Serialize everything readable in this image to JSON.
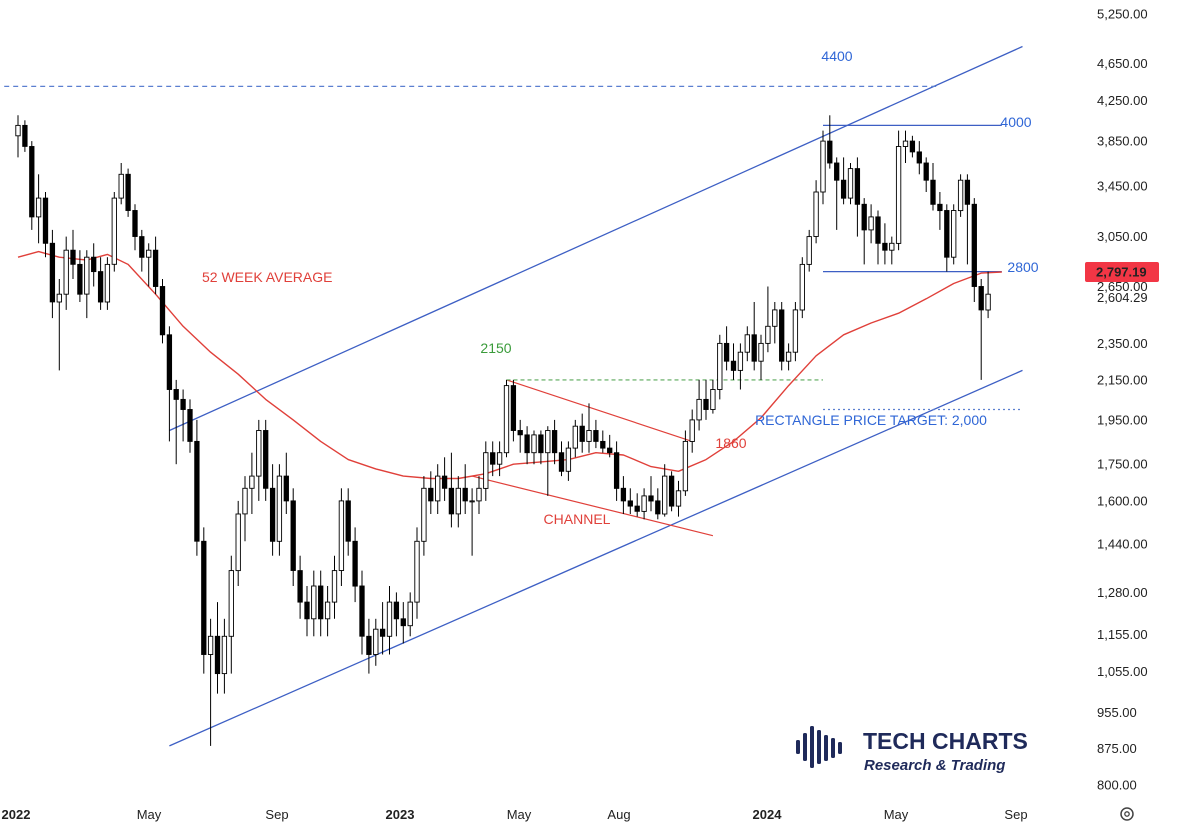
{
  "chart_data": {
    "type": "candlestick",
    "title": "",
    "y_axis": {
      "scale": "log",
      "ticks": [
        "5,250.00",
        "4,650.00",
        "4,250.00",
        "3,850.00",
        "3,450.00",
        "3,050.00",
        "2,650.00",
        "2,604.29",
        "2,350.00",
        "2,150.00",
        "1,950.00",
        "1,750.00",
        "1,600.00",
        "1,440.00",
        "1,280.00",
        "1,155.00",
        "1,055.00",
        "955.00",
        "875.00",
        "800.00"
      ],
      "tick_values": [
        5250,
        4650,
        4250,
        3850,
        3450,
        3050,
        2650,
        2604.29,
        2350,
        2150,
        1950,
        1750,
        1600,
        1440,
        1280,
        1155,
        1055,
        955,
        875,
        800
      ],
      "current_price_label": "2,797.19",
      "current_price": 2797.19,
      "current_price_color": "#f23645"
    },
    "x_axis": {
      "ticks": [
        "2022",
        "May",
        "Sep",
        "2023",
        "May",
        "Aug",
        "2024",
        "May",
        "Sep"
      ],
      "bold_ticks": [
        "2022",
        "2023",
        "2024"
      ]
    },
    "annotations": {
      "level_4400": "4400",
      "level_4000": "4000",
      "level_2800": "2800",
      "level_2150": "2150",
      "level_1860": "1860",
      "ma_label": "52 WEEK AVERAGE",
      "channel_label": "CHANNEL",
      "target_label": "RECTANGLE PRICE TARGET: 2,000"
    },
    "annotation_levels": {
      "level_4400": 4400,
      "level_4000": 4000,
      "level_2800": 2800,
      "level_2150": 2150,
      "target": 2000
    },
    "colors": {
      "trendline": "#3d5fc4",
      "moving_average": "#e0403a",
      "level_2150_label": "#3a9b3a",
      "level_2150_line": "#5aa85a",
      "blue_label": "#2f66d6",
      "red_label": "#e0403a",
      "dotted_level": "#5b7fd0",
      "candle_up_fill": "#ffffff",
      "candle_down_fill": "#000000",
      "candle_outline": "#000000"
    },
    "candles": [
      {
        "o": 3900,
        "h": 4100,
        "l": 3700,
        "c": 4000
      },
      {
        "o": 4000,
        "h": 4050,
        "l": 3750,
        "c": 3800
      },
      {
        "o": 3800,
        "h": 3850,
        "l": 3100,
        "c": 3200
      },
      {
        "o": 3200,
        "h": 3550,
        "l": 3000,
        "c": 3350
      },
      {
        "o": 3350,
        "h": 3400,
        "l": 2900,
        "c": 3000
      },
      {
        "o": 3000,
        "h": 3100,
        "l": 2500,
        "c": 2600
      },
      {
        "o": 2600,
        "h": 2750,
        "l": 2200,
        "c": 2650
      },
      {
        "o": 2650,
        "h": 3050,
        "l": 2550,
        "c": 2950
      },
      {
        "o": 2950,
        "h": 3100,
        "l": 2750,
        "c": 2850
      },
      {
        "o": 2850,
        "h": 2950,
        "l": 2600,
        "c": 2650
      },
      {
        "o": 2650,
        "h": 2950,
        "l": 2500,
        "c": 2900
      },
      {
        "o": 2900,
        "h": 3000,
        "l": 2700,
        "c": 2800
      },
      {
        "o": 2800,
        "h": 2900,
        "l": 2550,
        "c": 2600
      },
      {
        "o": 2600,
        "h": 2900,
        "l": 2550,
        "c": 2850
      },
      {
        "o": 2850,
        "h": 3400,
        "l": 2800,
        "c": 3350
      },
      {
        "o": 3350,
        "h": 3650,
        "l": 3300,
        "c": 3550
      },
      {
        "o": 3550,
        "h": 3600,
        "l": 3200,
        "c": 3250
      },
      {
        "o": 3250,
        "h": 3300,
        "l": 2950,
        "c": 3050
      },
      {
        "o": 3050,
        "h": 3100,
        "l": 2800,
        "c": 2900
      },
      {
        "o": 2900,
        "h": 3000,
        "l": 2700,
        "c": 2950
      },
      {
        "o": 2950,
        "h": 3050,
        "l": 2650,
        "c": 2700
      },
      {
        "o": 2700,
        "h": 2750,
        "l": 2350,
        "c": 2400
      },
      {
        "o": 2400,
        "h": 2450,
        "l": 1850,
        "c": 2100
      },
      {
        "o": 2100,
        "h": 2150,
        "l": 1750,
        "c": 2050
      },
      {
        "o": 2050,
        "h": 2100,
        "l": 1850,
        "c": 2000
      },
      {
        "o": 2000,
        "h": 2050,
        "l": 1800,
        "c": 1850
      },
      {
        "o": 1850,
        "h": 1950,
        "l": 1400,
        "c": 1450
      },
      {
        "o": 1450,
        "h": 1500,
        "l": 1050,
        "c": 1100
      },
      {
        "o": 1100,
        "h": 1200,
        "l": 880,
        "c": 1150
      },
      {
        "o": 1150,
        "h": 1250,
        "l": 1000,
        "c": 1050
      },
      {
        "o": 1050,
        "h": 1200,
        "l": 1000,
        "c": 1150
      },
      {
        "o": 1150,
        "h": 1400,
        "l": 1050,
        "c": 1350
      },
      {
        "o": 1350,
        "h": 1600,
        "l": 1300,
        "c": 1550
      },
      {
        "o": 1550,
        "h": 1700,
        "l": 1450,
        "c": 1650
      },
      {
        "o": 1650,
        "h": 1800,
        "l": 1550,
        "c": 1700
      },
      {
        "o": 1700,
        "h": 1950,
        "l": 1600,
        "c": 1900
      },
      {
        "o": 1900,
        "h": 1950,
        "l": 1600,
        "c": 1650
      },
      {
        "o": 1650,
        "h": 1750,
        "l": 1400,
        "c": 1450
      },
      {
        "o": 1450,
        "h": 1750,
        "l": 1400,
        "c": 1700
      },
      {
        "o": 1700,
        "h": 1800,
        "l": 1550,
        "c": 1600
      },
      {
        "o": 1600,
        "h": 1650,
        "l": 1300,
        "c": 1350
      },
      {
        "o": 1350,
        "h": 1400,
        "l": 1200,
        "c": 1250
      },
      {
        "o": 1250,
        "h": 1300,
        "l": 1150,
        "c": 1200
      },
      {
        "o": 1200,
        "h": 1350,
        "l": 1150,
        "c": 1300
      },
      {
        "o": 1300,
        "h": 1350,
        "l": 1150,
        "c": 1200
      },
      {
        "o": 1200,
        "h": 1300,
        "l": 1150,
        "c": 1250
      },
      {
        "o": 1250,
        "h": 1400,
        "l": 1200,
        "c": 1350
      },
      {
        "o": 1350,
        "h": 1650,
        "l": 1300,
        "c": 1600
      },
      {
        "o": 1600,
        "h": 1650,
        "l": 1400,
        "c": 1450
      },
      {
        "o": 1450,
        "h": 1500,
        "l": 1250,
        "c": 1300
      },
      {
        "o": 1300,
        "h": 1350,
        "l": 1100,
        "c": 1150
      },
      {
        "o": 1150,
        "h": 1200,
        "l": 1050,
        "c": 1100
      },
      {
        "o": 1100,
        "h": 1200,
        "l": 1070,
        "c": 1170
      },
      {
        "o": 1170,
        "h": 1250,
        "l": 1100,
        "c": 1150
      },
      {
        "o": 1150,
        "h": 1300,
        "l": 1100,
        "c": 1250
      },
      {
        "o": 1250,
        "h": 1280,
        "l": 1150,
        "c": 1200
      },
      {
        "o": 1200,
        "h": 1250,
        "l": 1130,
        "c": 1180
      },
      {
        "o": 1180,
        "h": 1280,
        "l": 1150,
        "c": 1250
      },
      {
        "o": 1250,
        "h": 1500,
        "l": 1200,
        "c": 1450
      },
      {
        "o": 1450,
        "h": 1700,
        "l": 1400,
        "c": 1650
      },
      {
        "o": 1650,
        "h": 1720,
        "l": 1550,
        "c": 1600
      },
      {
        "o": 1600,
        "h": 1750,
        "l": 1550,
        "c": 1700
      },
      {
        "o": 1700,
        "h": 1780,
        "l": 1600,
        "c": 1650
      },
      {
        "o": 1650,
        "h": 1800,
        "l": 1500,
        "c": 1550
      },
      {
        "o": 1550,
        "h": 1700,
        "l": 1500,
        "c": 1650
      },
      {
        "o": 1650,
        "h": 1750,
        "l": 1550,
        "c": 1600
      },
      {
        "o": 1600,
        "h": 1650,
        "l": 1400,
        "c": 1600
      },
      {
        "o": 1600,
        "h": 1700,
        "l": 1550,
        "c": 1650
      },
      {
        "o": 1650,
        "h": 1850,
        "l": 1600,
        "c": 1800
      },
      {
        "o": 1800,
        "h": 1850,
        "l": 1700,
        "c": 1750
      },
      {
        "o": 1750,
        "h": 1850,
        "l": 1700,
        "c": 1800
      },
      {
        "o": 1800,
        "h": 2150,
        "l": 1780,
        "c": 2120
      },
      {
        "o": 2120,
        "h": 2150,
        "l": 1850,
        "c": 1900
      },
      {
        "o": 1900,
        "h": 1950,
        "l": 1800,
        "c": 1880
      },
      {
        "o": 1880,
        "h": 1920,
        "l": 1750,
        "c": 1800
      },
      {
        "o": 1800,
        "h": 1900,
        "l": 1750,
        "c": 1880
      },
      {
        "o": 1880,
        "h": 1900,
        "l": 1750,
        "c": 1800
      },
      {
        "o": 1800,
        "h": 1920,
        "l": 1620,
        "c": 1900
      },
      {
        "o": 1900,
        "h": 1950,
        "l": 1750,
        "c": 1800
      },
      {
        "o": 1800,
        "h": 1850,
        "l": 1700,
        "c": 1720
      },
      {
        "o": 1720,
        "h": 1850,
        "l": 1680,
        "c": 1820
      },
      {
        "o": 1820,
        "h": 1950,
        "l": 1780,
        "c": 1920
      },
      {
        "o": 1920,
        "h": 1980,
        "l": 1800,
        "c": 1850
      },
      {
        "o": 1850,
        "h": 2030,
        "l": 1800,
        "c": 1900
      },
      {
        "o": 1900,
        "h": 1950,
        "l": 1820,
        "c": 1850
      },
      {
        "o": 1850,
        "h": 1900,
        "l": 1800,
        "c": 1820
      },
      {
        "o": 1820,
        "h": 1880,
        "l": 1780,
        "c": 1800
      },
      {
        "o": 1800,
        "h": 1850,
        "l": 1600,
        "c": 1650
      },
      {
        "o": 1650,
        "h": 1700,
        "l": 1550,
        "c": 1600
      },
      {
        "o": 1600,
        "h": 1650,
        "l": 1550,
        "c": 1580
      },
      {
        "o": 1580,
        "h": 1630,
        "l": 1540,
        "c": 1560
      },
      {
        "o": 1560,
        "h": 1650,
        "l": 1530,
        "c": 1620
      },
      {
        "o": 1620,
        "h": 1700,
        "l": 1560,
        "c": 1600
      },
      {
        "o": 1600,
        "h": 1650,
        "l": 1530,
        "c": 1550
      },
      {
        "o": 1550,
        "h": 1750,
        "l": 1540,
        "c": 1700
      },
      {
        "o": 1700,
        "h": 1720,
        "l": 1560,
        "c": 1580
      },
      {
        "o": 1580,
        "h": 1680,
        "l": 1540,
        "c": 1640
      },
      {
        "o": 1640,
        "h": 1900,
        "l": 1620,
        "c": 1850
      },
      {
        "o": 1850,
        "h": 2000,
        "l": 1800,
        "c": 1950
      },
      {
        "o": 1950,
        "h": 2150,
        "l": 1900,
        "c": 2050
      },
      {
        "o": 2050,
        "h": 2150,
        "l": 1950,
        "c": 2000
      },
      {
        "o": 2000,
        "h": 2150,
        "l": 1980,
        "c": 2100
      },
      {
        "o": 2100,
        "h": 2400,
        "l": 2050,
        "c": 2350
      },
      {
        "o": 2350,
        "h": 2450,
        "l": 2200,
        "c": 2250
      },
      {
        "o": 2250,
        "h": 2350,
        "l": 2150,
        "c": 2200
      },
      {
        "o": 2200,
        "h": 2350,
        "l": 2100,
        "c": 2300
      },
      {
        "o": 2300,
        "h": 2450,
        "l": 2250,
        "c": 2400
      },
      {
        "o": 2400,
        "h": 2600,
        "l": 2200,
        "c": 2250
      },
      {
        "o": 2250,
        "h": 2400,
        "l": 2150,
        "c": 2350
      },
      {
        "o": 2350,
        "h": 2700,
        "l": 2300,
        "c": 2450
      },
      {
        "o": 2450,
        "h": 2600,
        "l": 2350,
        "c": 2550
      },
      {
        "o": 2550,
        "h": 2600,
        "l": 2200,
        "c": 2250
      },
      {
        "o": 2250,
        "h": 2350,
        "l": 2200,
        "c": 2300
      },
      {
        "o": 2300,
        "h": 2600,
        "l": 2250,
        "c": 2550
      },
      {
        "o": 2550,
        "h": 2900,
        "l": 2500,
        "c": 2850
      },
      {
        "o": 2850,
        "h": 3100,
        "l": 2800,
        "c": 3050
      },
      {
        "o": 3050,
        "h": 3500,
        "l": 3000,
        "c": 3400
      },
      {
        "o": 3400,
        "h": 3950,
        "l": 3300,
        "c": 3850
      },
      {
        "o": 3850,
        "h": 4100,
        "l": 3600,
        "c": 3650
      },
      {
        "o": 3650,
        "h": 3700,
        "l": 3100,
        "c": 3500
      },
      {
        "o": 3500,
        "h": 3700,
        "l": 3300,
        "c": 3350
      },
      {
        "o": 3350,
        "h": 3650,
        "l": 3300,
        "c": 3600
      },
      {
        "o": 3600,
        "h": 3700,
        "l": 3050,
        "c": 3300
      },
      {
        "o": 3300,
        "h": 3350,
        "l": 2850,
        "c": 3100
      },
      {
        "o": 3100,
        "h": 3300,
        "l": 3000,
        "c": 3200
      },
      {
        "o": 3200,
        "h": 3250,
        "l": 2850,
        "c": 3000
      },
      {
        "o": 3000,
        "h": 3150,
        "l": 2850,
        "c": 2950
      },
      {
        "o": 2950,
        "h": 3050,
        "l": 2850,
        "c": 3000
      },
      {
        "o": 3000,
        "h": 3950,
        "l": 2950,
        "c": 3800
      },
      {
        "o": 3800,
        "h": 3950,
        "l": 3650,
        "c": 3850
      },
      {
        "o": 3850,
        "h": 3900,
        "l": 3700,
        "c": 3750
      },
      {
        "o": 3750,
        "h": 3850,
        "l": 3550,
        "c": 3650
      },
      {
        "o": 3650,
        "h": 3700,
        "l": 3400,
        "c": 3500
      },
      {
        "o": 3500,
        "h": 3650,
        "l": 3250,
        "c": 3300
      },
      {
        "o": 3300,
        "h": 3400,
        "l": 3100,
        "c": 3250
      },
      {
        "o": 3250,
        "h": 3300,
        "l": 2800,
        "c": 2900
      },
      {
        "o": 2900,
        "h": 3300,
        "l": 2850,
        "c": 3250
      },
      {
        "o": 3250,
        "h": 3550,
        "l": 3200,
        "c": 3500
      },
      {
        "o": 3500,
        "h": 3550,
        "l": 2850,
        "c": 3300
      },
      {
        "o": 3300,
        "h": 3350,
        "l": 2600,
        "c": 2700
      },
      {
        "o": 2700,
        "h": 2750,
        "l": 2150,
        "c": 2550
      },
      {
        "o": 2550,
        "h": 2800,
        "l": 2500,
        "c": 2650
      }
    ],
    "moving_average": [
      [
        0,
        2900
      ],
      [
        3,
        2940
      ],
      [
        6,
        2900
      ],
      [
        10,
        2880
      ],
      [
        13,
        2920
      ],
      [
        16,
        2850
      ],
      [
        20,
        2650
      ],
      [
        24,
        2450
      ],
      [
        28,
        2300
      ],
      [
        32,
        2180
      ],
      [
        36,
        2050
      ],
      [
        40,
        1950
      ],
      [
        44,
        1850
      ],
      [
        48,
        1770
      ],
      [
        52,
        1730
      ],
      [
        56,
        1700
      ],
      [
        60,
        1690
      ],
      [
        64,
        1690
      ],
      [
        68,
        1710
      ],
      [
        72,
        1750
      ],
      [
        76,
        1760
      ],
      [
        80,
        1770
      ],
      [
        84,
        1800
      ],
      [
        88,
        1790
      ],
      [
        92,
        1740
      ],
      [
        96,
        1720
      ],
      [
        100,
        1770
      ],
      [
        104,
        1850
      ],
      [
        108,
        1960
      ],
      [
        112,
        2120
      ],
      [
        116,
        2280
      ],
      [
        120,
        2400
      ],
      [
        124,
        2470
      ],
      [
        128,
        2530
      ],
      [
        132,
        2620
      ],
      [
        136,
        2720
      ],
      [
        140,
        2790
      ],
      [
        143,
        2797
      ]
    ],
    "trendlines": {
      "upper_channel": {
        "start": {
          "i": 22,
          "p": 1900
        },
        "end": {
          "i": 146,
          "p": 4850
        }
      },
      "lower_channel": {
        "start": {
          "i": 22,
          "p": 880
        },
        "end": {
          "i": 146,
          "p": 2200
        }
      },
      "falling_channel_top": {
        "start": {
          "i": 71,
          "p": 2150
        },
        "end": {
          "i": 98,
          "p": 1850
        }
      },
      "falling_channel_bottom": {
        "start": {
          "i": 66,
          "p": 1700
        },
        "end": {
          "i": 101,
          "p": 1470
        }
      },
      "resistance_4000": {
        "start": {
          "i": 117,
          "p": 4000
        },
        "end": {
          "i": 143,
          "p": 4000
        }
      },
      "support_2800": {
        "start": {
          "i": 117,
          "p": 2800
        },
        "end": {
          "i": 143,
          "p": 2800
        }
      },
      "dashed_4400": {
        "start": {
          "i": -2,
          "p": 4400
        },
        "end": {
          "i": 134,
          "p": 4400
        }
      },
      "dashed_2150": {
        "start": {
          "i": 71,
          "p": 2150
        },
        "end": {
          "i": 117,
          "p": 2150
        }
      },
      "dotted_target": {
        "start": {
          "i": 117,
          "p": 2000
        },
        "end": {
          "i": 146,
          "p": 2000
        }
      }
    }
  },
  "logo": {
    "title": "TECH CHARTS",
    "subtitle": "Research & Trading"
  },
  "icons": {
    "settings": "gear-icon"
  }
}
